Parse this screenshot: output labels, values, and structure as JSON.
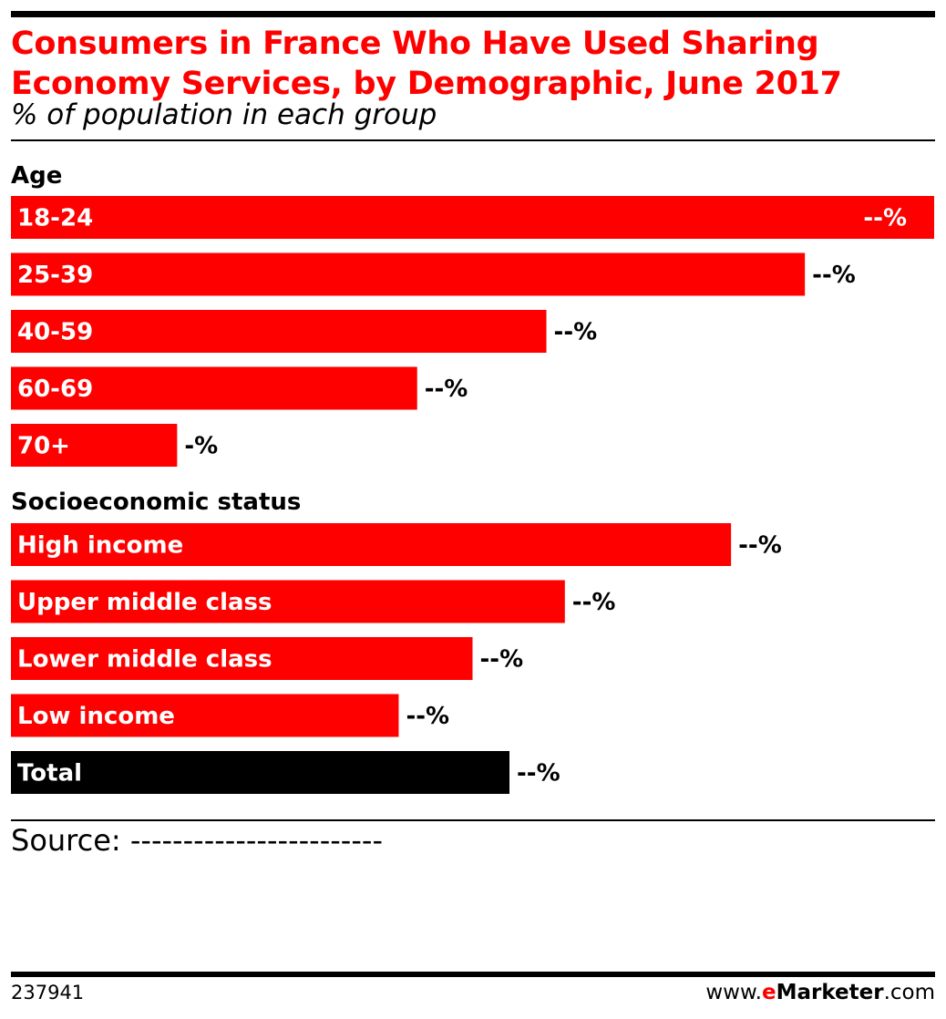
{
  "chart_data": {
    "type": "bar",
    "orientation": "horizontal",
    "title": "Consumers in France Who Have Used Sharing Economy Services, by Demographic, June 2017",
    "subtitle": "% of population in each group",
    "xlim": [
      0,
      100
    ],
    "grid": false,
    "groups": [
      {
        "label": "Age",
        "categories": [
          "18-24",
          "25-39",
          "40-59",
          "60-69",
          "70+"
        ],
        "values": [
          100,
          86,
          58,
          44,
          18
        ],
        "value_labels": [
          "--%",
          "--%",
          "--%",
          "--%",
          "-%"
        ]
      },
      {
        "label": "Socioeconomic status",
        "categories": [
          "High income",
          "Upper middle class",
          "Lower middle class",
          "Low income"
        ],
        "values": [
          78,
          60,
          50,
          42
        ],
        "value_labels": [
          "--%",
          "--%",
          "--%",
          "--%"
        ]
      },
      {
        "label": "",
        "categories": [
          "Total"
        ],
        "values": [
          54
        ],
        "value_labels": [
          "--%"
        ]
      }
    ],
    "colors": {
      "bar": "#ff0000",
      "total_bar": "#000000",
      "title": "#ff0000"
    }
  },
  "source": "Source: ------------------------",
  "footer": {
    "chart_id": "237941",
    "brand_prefix": "www.",
    "brand_accent": "e",
    "brand_name": "Marketer",
    "brand_suffix": ".com"
  }
}
